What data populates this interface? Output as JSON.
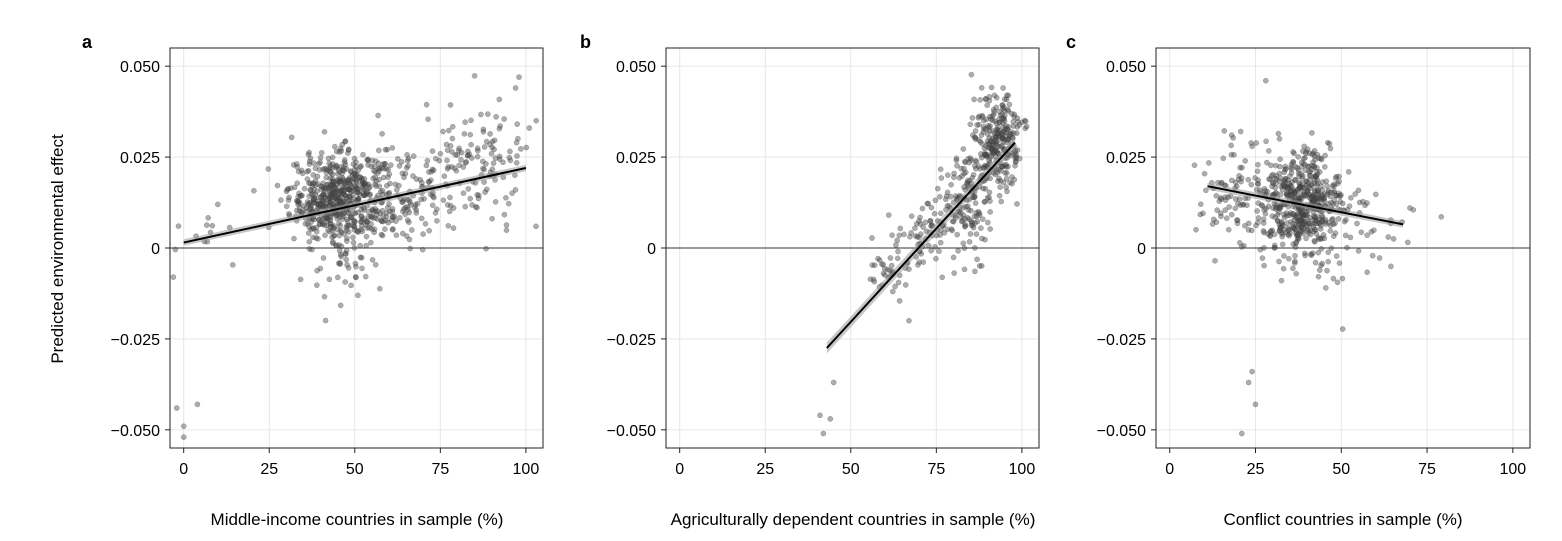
{
  "ylabel": "Predicted environmental effect",
  "chart_data": [
    {
      "type": "scatter",
      "panel_label": "a",
      "title": "",
      "xlabel": "Middle-income countries in sample (%)",
      "ylabel": "Predicted environmental effect",
      "xlim": [
        -4,
        105
      ],
      "ylim": [
        -0.055,
        0.055
      ],
      "xticks": [
        0,
        25,
        50,
        75,
        100
      ],
      "xtick_labels": [
        "0",
        "25",
        "50",
        "75",
        "100"
      ],
      "yticks": [
        -0.05,
        -0.025,
        0,
        0.025,
        0.05
      ],
      "ytick_labels": [
        "−0.050",
        "−0.025",
        "0",
        "0.025",
        "0.050"
      ],
      "grid": true,
      "reference_line_y": 0,
      "fit_line": {
        "x": [
          0,
          100
        ],
        "y": [
          0.0015,
          0.022
        ]
      },
      "fit_band_halfwidth": 0.0009,
      "clusters": [
        {
          "n": 560,
          "cx": 45,
          "sx": 7,
          "cy": 0.0135,
          "sy": 0.0062
        },
        {
          "n": 150,
          "cx": 62,
          "sx": 9,
          "cy": 0.0155,
          "sy": 0.0075
        },
        {
          "n": 130,
          "cx": 85,
          "sx": 8,
          "cy": 0.022,
          "sy": 0.008
        },
        {
          "n": 30,
          "cx": 48,
          "sx": 5,
          "cy": -0.008,
          "sy": 0.004
        },
        {
          "n": 12,
          "cx": 6,
          "sx": 5,
          "cy": 0.004,
          "sy": 0.005
        }
      ],
      "points": [
        {
          "x": -3,
          "y": -0.008
        },
        {
          "x": -2,
          "y": -0.044
        },
        {
          "x": 0,
          "y": -0.049
        },
        {
          "x": 0,
          "y": -0.052
        },
        {
          "x": 4,
          "y": -0.043
        },
        {
          "x": 98,
          "y": 0.047
        },
        {
          "x": 97,
          "y": 0.044
        },
        {
          "x": 103,
          "y": 0.035
        },
        {
          "x": 101,
          "y": 0.033
        }
      ]
    },
    {
      "type": "scatter",
      "panel_label": "b",
      "title": "",
      "xlabel": "Agriculturally dependent countries in sample (%)",
      "ylabel": "",
      "xlim": [
        -4,
        105
      ],
      "ylim": [
        -0.055,
        0.055
      ],
      "xticks": [
        0,
        25,
        50,
        75,
        100
      ],
      "xtick_labels": [
        "0",
        "25",
        "50",
        "75",
        "100"
      ],
      "yticks": [
        -0.05,
        -0.025,
        0,
        0.025,
        0.05
      ],
      "ytick_labels": [
        "−0.050",
        "−0.025",
        "0",
        "0.025",
        "0.050"
      ],
      "grid": true,
      "reference_line_y": 0,
      "fit_line": {
        "x": [
          43,
          98
        ],
        "y": [
          -0.0275,
          0.029
        ]
      },
      "fit_band_halfwidth": 0.0015,
      "clusters": [
        {
          "n": 260,
          "cx": 93,
          "sx": 3.5,
          "cy": 0.029,
          "sy": 0.0065
        },
        {
          "n": 150,
          "cx": 84,
          "sx": 4,
          "cy": 0.012,
          "sy": 0.007
        },
        {
          "n": 60,
          "cx": 72,
          "sx": 4,
          "cy": 0.003,
          "sy": 0.0045
        },
        {
          "n": 40,
          "cx": 61,
          "sx": 3.5,
          "cy": -0.006,
          "sy": 0.004
        }
      ],
      "points": [
        {
          "x": 41,
          "y": -0.046
        },
        {
          "x": 42,
          "y": -0.051
        },
        {
          "x": 44,
          "y": -0.047
        },
        {
          "x": 45,
          "y": -0.037
        },
        {
          "x": 67,
          "y": -0.02
        },
        {
          "x": 96,
          "y": 0.042
        },
        {
          "x": 92,
          "y": 0.042
        }
      ]
    },
    {
      "type": "scatter",
      "panel_label": "c",
      "title": "",
      "xlabel": "Conflict countries in sample (%)",
      "ylabel": "",
      "xlim": [
        -4,
        105
      ],
      "ylim": [
        -0.055,
        0.055
      ],
      "xticks": [
        0,
        25,
        50,
        75,
        100
      ],
      "xtick_labels": [
        "0",
        "25",
        "50",
        "75",
        "100"
      ],
      "yticks": [
        -0.05,
        -0.025,
        0,
        0.025,
        0.05
      ],
      "ytick_labels": [
        "−0.050",
        "−0.025",
        "0",
        "0.025",
        "0.050"
      ],
      "grid": true,
      "reference_line_y": 0,
      "fit_line": {
        "x": [
          11,
          68
        ],
        "y": [
          0.017,
          0.0065
        ]
      },
      "fit_band_halfwidth": 0.0009,
      "clusters": [
        {
          "n": 560,
          "cx": 38,
          "sx": 6.5,
          "cy": 0.0115,
          "sy": 0.0075
        },
        {
          "n": 70,
          "cx": 18,
          "sx": 5,
          "cy": 0.016,
          "sy": 0.009
        },
        {
          "n": 40,
          "cx": 55,
          "sx": 7,
          "cy": 0.004,
          "sy": 0.008
        }
      ],
      "points": [
        {
          "x": 28,
          "y": 0.046
        },
        {
          "x": 24,
          "y": -0.034
        },
        {
          "x": 23,
          "y": -0.037
        },
        {
          "x": 25,
          "y": -0.043
        },
        {
          "x": 21,
          "y": -0.051
        },
        {
          "x": 70,
          "y": 0.011
        },
        {
          "x": 71,
          "y": 0.0105
        }
      ]
    }
  ]
}
